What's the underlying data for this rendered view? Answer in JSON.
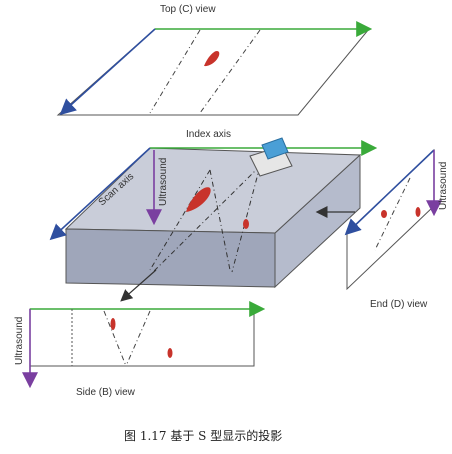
{
  "labels": {
    "top_view": "Top (C) view",
    "index_axis": "Index axis",
    "scan_axis": "Scan axis",
    "ultrasound_box": "Ultrasound",
    "ultrasound_end": "Ultrasound",
    "ultrasound_side": "Ultrasound",
    "end_view": "End (D) view",
    "side_view": "Side (B) view"
  },
  "caption": "图 1.17  基于 S 型显示的投影",
  "colors": {
    "arrow_green": "#3aaa3a",
    "arrow_blue": "#2f4f9f",
    "arrow_purple": "#7a3fa0",
    "defect_red": "#c8332b",
    "box_top": "#c9cdd9",
    "box_front": "#9fa6ba",
    "box_side": "#b5bbcc",
    "probe": "#4a9fd6"
  }
}
